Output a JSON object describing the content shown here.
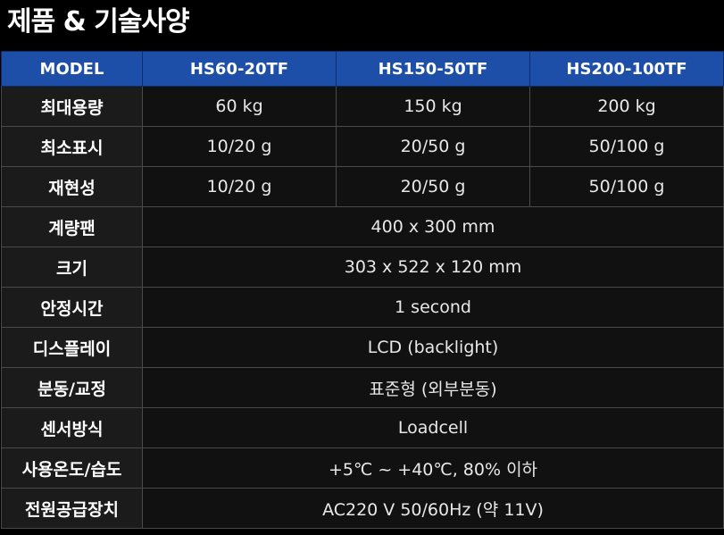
{
  "title": "제품 & 기술사양",
  "header": [
    "MODEL",
    "HS60-20TF",
    "HS150-50TF",
    "HS200-100TF"
  ],
  "rows": [
    {
      "label": "최대용량",
      "values": [
        "60 kg",
        "150 kg",
        "200 kg"
      ]
    },
    {
      "label": "최소표시",
      "values": [
        "10/20 g",
        "20/50 g",
        "50/100 g"
      ]
    },
    {
      "label": "재현성",
      "values": [
        "10/20 g",
        "20/50 g",
        "50/100 g"
      ]
    },
    {
      "label": "계량팬",
      "value": "400 x 300 mm"
    },
    {
      "label": "크기",
      "value": "303 x 522 x 120 mm"
    },
    {
      "label": "안정시간",
      "value": "1 second"
    },
    {
      "label": "디스플레이",
      "value": "LCD (backlight)"
    },
    {
      "label": "분동/교정",
      "value": "표준형 (외부분동)"
    },
    {
      "label": "센서방식",
      "value": "Loadcell"
    },
    {
      "label": "사용온도/습도",
      "value": "+5℃ ~ +40℃, 80% 이하"
    },
    {
      "label": "전원공급장치",
      "value": "AC220 V 50/60Hz (약 11V)"
    }
  ]
}
